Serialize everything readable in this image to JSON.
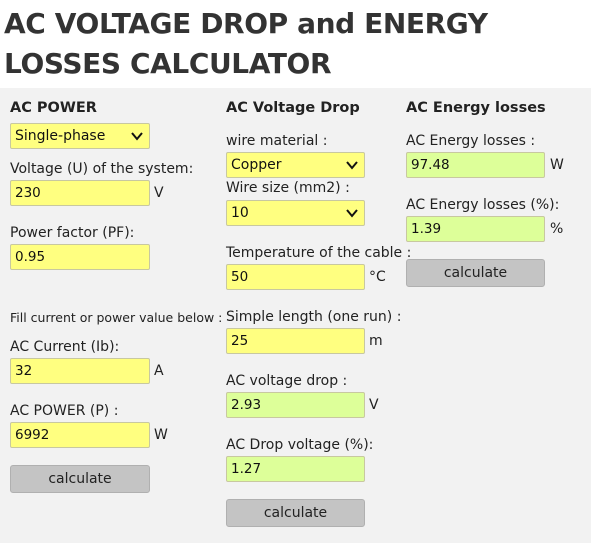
{
  "page": {
    "title": "AC VOLTAGE DROP and ENERGY LOSSES CALCULATOR"
  },
  "power": {
    "header": "AC POWER",
    "phase_select": "Single-phase",
    "voltage_label": "Voltage (U) of the system:",
    "voltage_value": "230",
    "voltage_unit": "V",
    "pf_label": "Power factor (PF):",
    "pf_value": "0.95",
    "fill_note": "Fill current or power value below :",
    "current_label": "AC Current (Ib):",
    "current_value": "32",
    "current_unit": "A",
    "power_label": "AC POWER (P) :",
    "power_value": "6992",
    "power_unit": "W",
    "calculate": "calculate"
  },
  "drop": {
    "header": "AC Voltage Drop",
    "material_label": "wire material :",
    "material_select": "Copper",
    "size_label": "Wire size (mm2) :",
    "size_select": "10",
    "temp_label": "Temperature of the cable :",
    "temp_value": "50",
    "temp_unit": "°C",
    "length_label": "Simple length (one run) :",
    "length_value": "25",
    "length_unit": "m",
    "vdrop_label": "AC voltage drop :",
    "vdrop_value": "2.93",
    "vdrop_unit": "V",
    "pct_label": "AC Drop voltage (%):",
    "pct_value": "1.27",
    "calculate": "calculate"
  },
  "losses": {
    "header": "AC Energy losses",
    "loss_label": "AC Energy losses :",
    "loss_value": "97.48",
    "loss_unit": "W",
    "pct_label": "AC Energy losses (%):",
    "pct_value": "1.39",
    "pct_unit": "%",
    "calculate": "calculate"
  },
  "icons": {
    "select_arrow": "chevron-down-icon"
  }
}
